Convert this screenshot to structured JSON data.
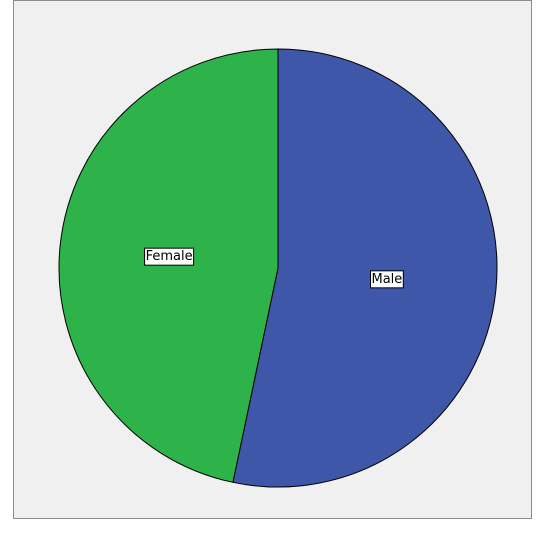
{
  "chart_data": {
    "type": "pie",
    "title": "",
    "start_angle_deg": 0,
    "direction": "clockwise",
    "labels_inside": true,
    "legend": "none",
    "slices": [
      {
        "label": "Male",
        "value": 53.3,
        "color": "#3f57a8"
      },
      {
        "label": "Female",
        "value": 46.7,
        "color": "#2db34a"
      }
    ]
  },
  "style": {
    "background": "#f0f0f0",
    "frame_border": "#8c8c8c",
    "slice_outline": "#000000"
  }
}
